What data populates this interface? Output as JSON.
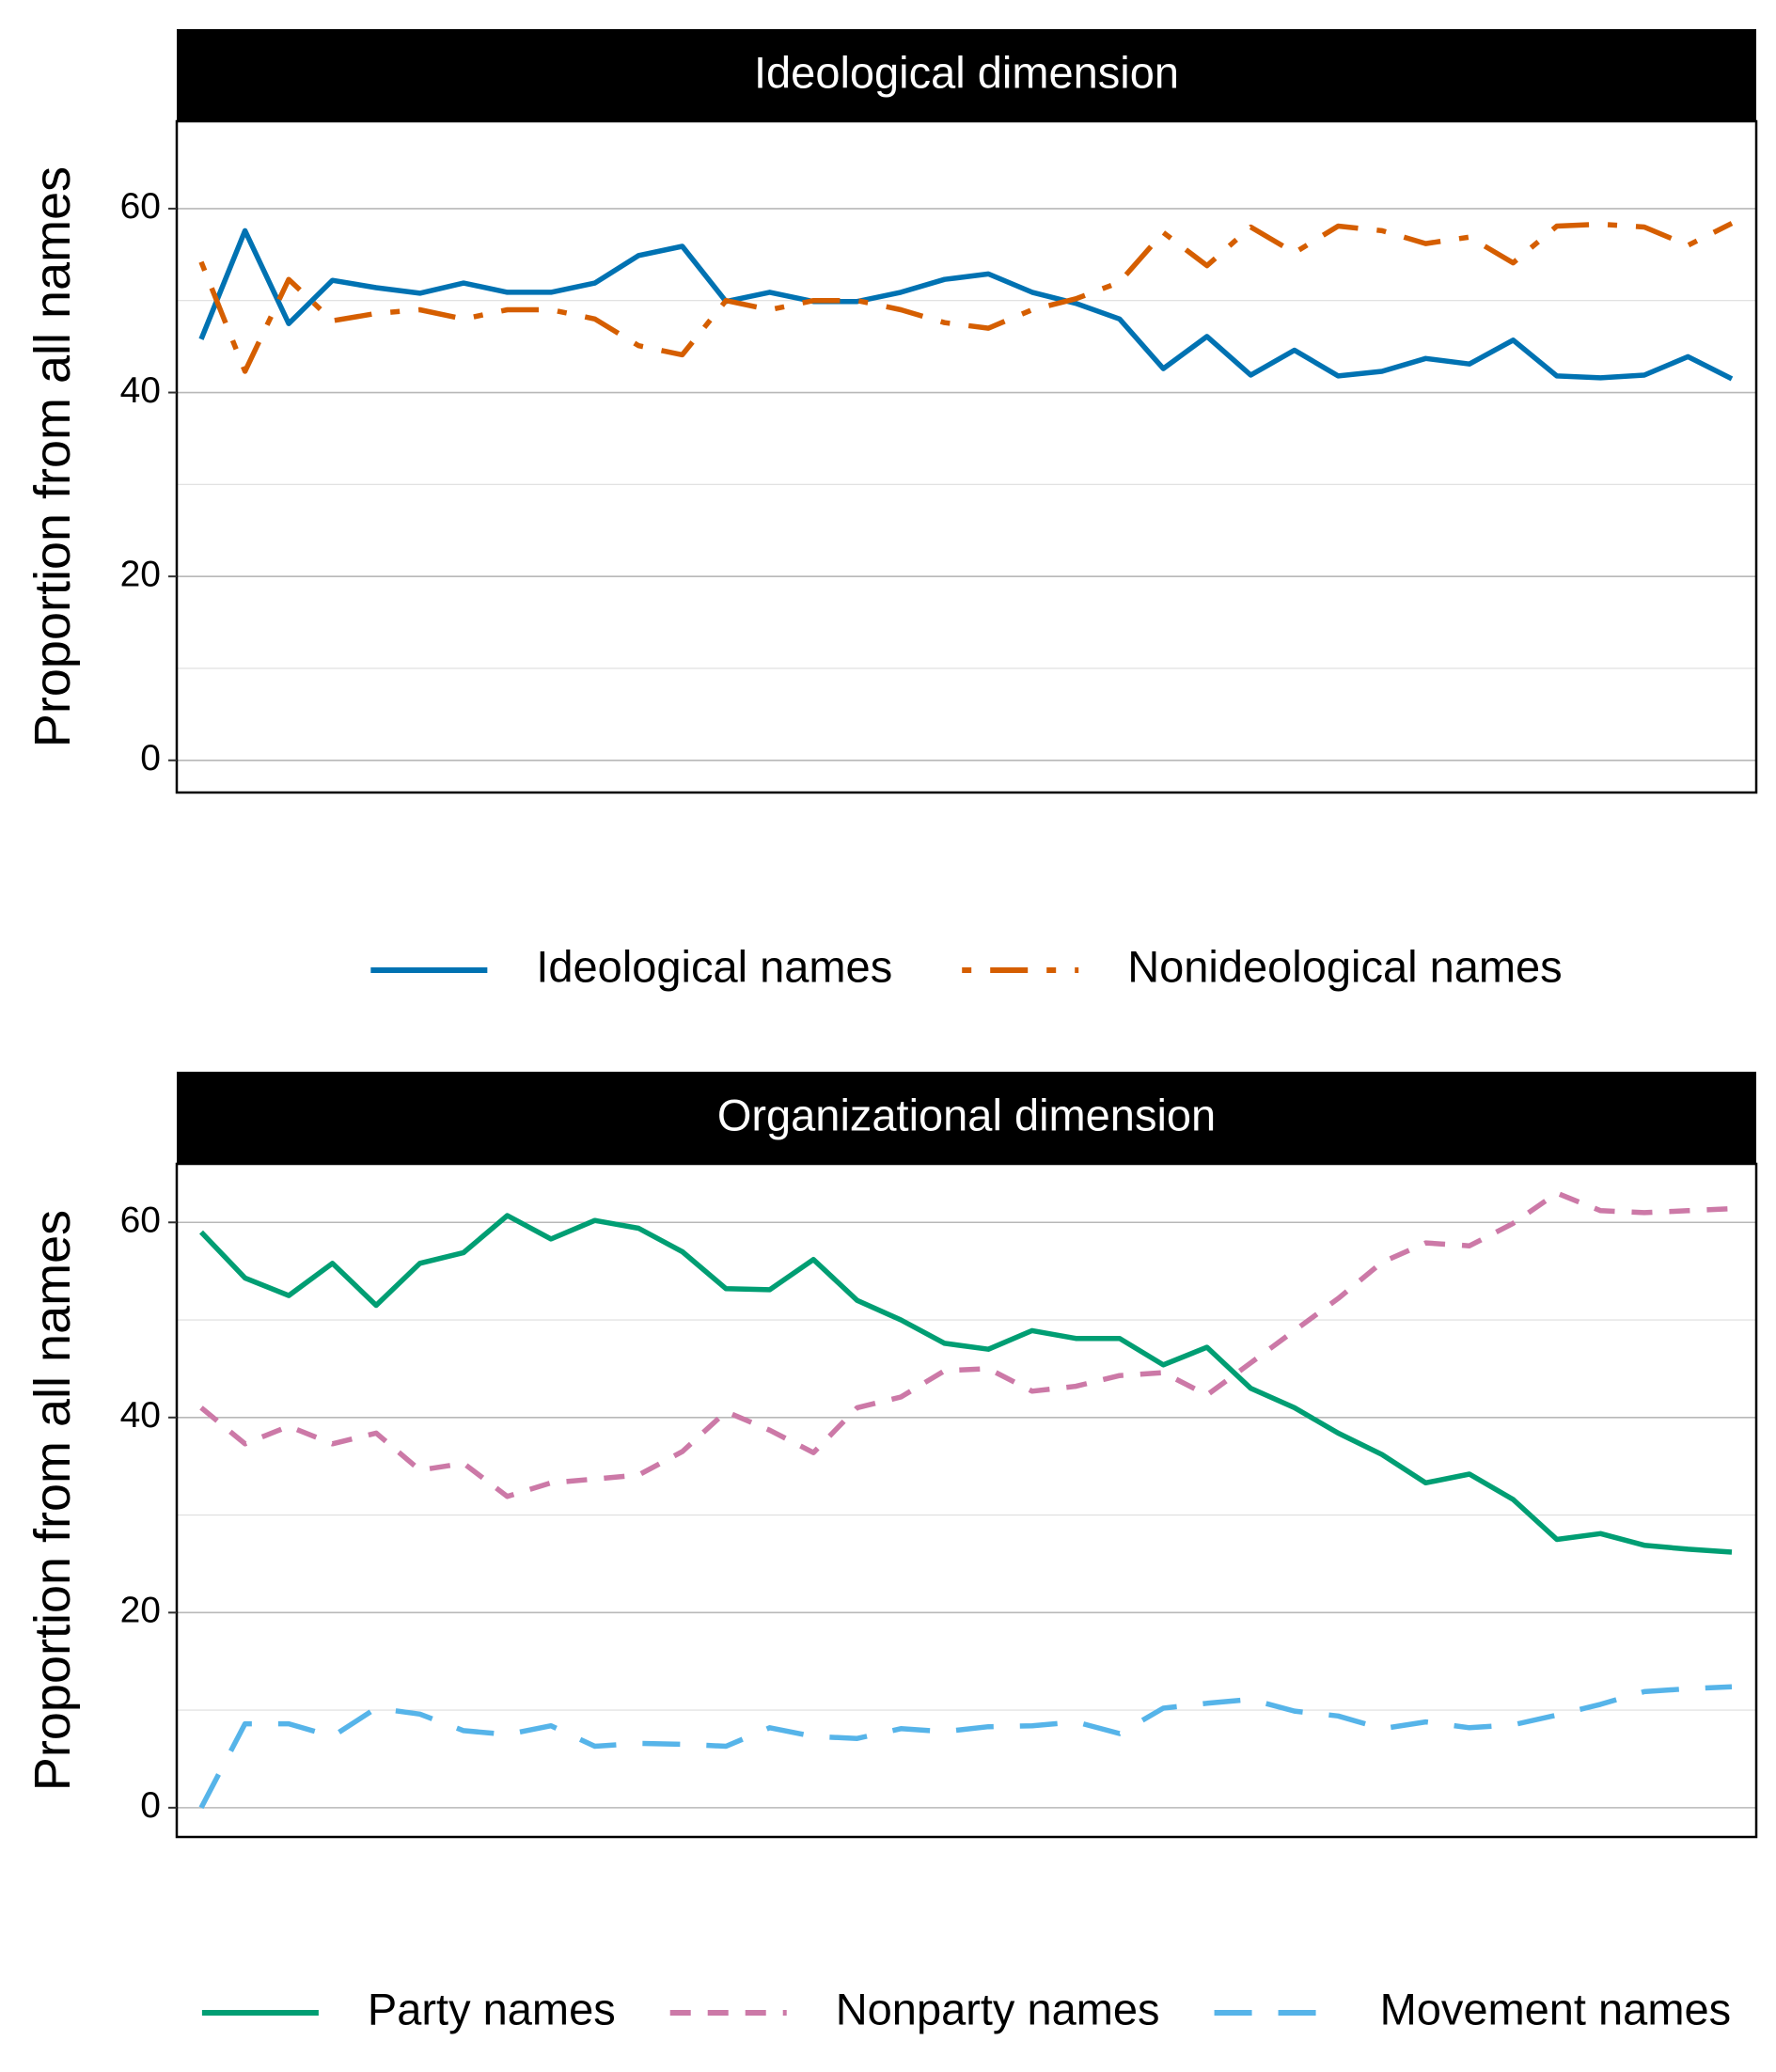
{
  "chart_data": [
    {
      "type": "line",
      "title": "Ideological dimension",
      "xlabel": "",
      "ylabel": "Proportion from all names",
      "ylim": [
        -3.5,
        69.5
      ],
      "yticks": [
        0,
        20,
        40,
        60
      ],
      "grid": true,
      "legend_position": "bottom",
      "x": [
        1,
        2,
        3,
        4,
        5,
        6,
        7,
        8,
        9,
        10,
        11,
        12,
        13,
        14,
        15,
        16,
        17,
        18,
        19,
        20,
        21,
        22,
        23,
        24,
        25,
        26,
        27,
        28,
        29,
        30,
        31,
        32,
        33,
        34,
        35,
        36
      ],
      "series": [
        {
          "name": "Ideological names",
          "color": "#0072B2",
          "dash": "solid",
          "values": [
            45.8,
            57.6,
            47.5,
            52.2,
            51.4,
            50.8,
            51.9,
            50.9,
            50.9,
            51.9,
            54.9,
            55.9,
            49.9,
            50.9,
            49.9,
            49.9,
            50.9,
            52.3,
            52.9,
            50.9,
            49.7,
            48.0,
            42.6,
            46.1,
            41.9,
            44.6,
            41.8,
            42.3,
            43.7,
            43.1,
            45.7,
            41.8,
            41.6,
            41.9,
            43.9,
            41.5
          ]
        },
        {
          "name": "Nonideological names",
          "color": "#D55E00",
          "dash": "dotdash",
          "values": [
            54.2,
            42.3,
            52.3,
            47.8,
            48.6,
            49.0,
            48.0,
            49.0,
            49.0,
            48.0,
            45.1,
            44.1,
            50.0,
            49.0,
            50.0,
            50.0,
            49.0,
            47.6,
            47.0,
            49.0,
            50.2,
            52.0,
            57.4,
            53.8,
            58.0,
            55.2,
            58.1,
            57.6,
            56.2,
            56.9,
            54.1,
            58.1,
            58.3,
            58.0,
            56.0,
            58.4
          ]
        }
      ]
    },
    {
      "type": "line",
      "title": "Organizational dimension",
      "xlabel": "",
      "ylabel": "Proportion from all names",
      "ylim": [
        -3.0,
        66.0
      ],
      "yticks": [
        0,
        20,
        40,
        60
      ],
      "grid": true,
      "legend_position": "bottom",
      "x": [
        1,
        2,
        3,
        4,
        5,
        6,
        7,
        8,
        9,
        10,
        11,
        12,
        13,
        14,
        15,
        16,
        17,
        18,
        19,
        20,
        21,
        22,
        23,
        24,
        25,
        26,
        27,
        28,
        29,
        30,
        31,
        32,
        33,
        34,
        35,
        36
      ],
      "series": [
        {
          "name": "Party names",
          "color": "#009E73",
          "dash": "solid",
          "values": [
            59.0,
            54.3,
            52.5,
            55.8,
            51.5,
            55.8,
            56.9,
            60.7,
            58.3,
            60.2,
            59.4,
            57.0,
            53.2,
            53.1,
            56.2,
            52.0,
            50.0,
            47.6,
            47.0,
            48.9,
            48.1,
            48.1,
            45.4,
            47.2,
            43.0,
            41.0,
            38.4,
            36.2,
            33.3,
            34.2,
            31.6,
            27.5,
            28.1,
            26.9,
            26.5,
            26.2
          ]
        },
        {
          "name": "Nonparty names",
          "color": "#CC79A7",
          "dash": "dashed",
          "values": [
            41.0,
            37.3,
            39.1,
            37.3,
            38.4,
            34.6,
            35.3,
            31.9,
            33.3,
            33.7,
            34.1,
            36.5,
            40.6,
            38.7,
            36.4,
            41.0,
            42.1,
            44.8,
            45.0,
            42.7,
            43.2,
            44.3,
            44.6,
            42.3,
            45.6,
            48.9,
            52.2,
            55.9,
            57.9,
            57.6,
            59.9,
            63.0,
            61.2,
            61.0,
            61.2,
            61.4
          ]
        },
        {
          "name": "Movement names",
          "color": "#56B4E9",
          "dash": "longdash",
          "values": [
            0.0,
            8.6,
            8.6,
            7.3,
            10.2,
            9.6,
            7.9,
            7.5,
            8.4,
            6.3,
            6.6,
            6.5,
            6.3,
            8.2,
            7.3,
            7.1,
            8.1,
            7.8,
            8.3,
            8.4,
            8.8,
            7.6,
            10.2,
            10.7,
            11.1,
            9.9,
            9.4,
            8.1,
            8.8,
            8.2,
            8.5,
            9.5,
            10.6,
            11.9,
            12.2,
            12.4
          ]
        }
      ]
    }
  ]
}
